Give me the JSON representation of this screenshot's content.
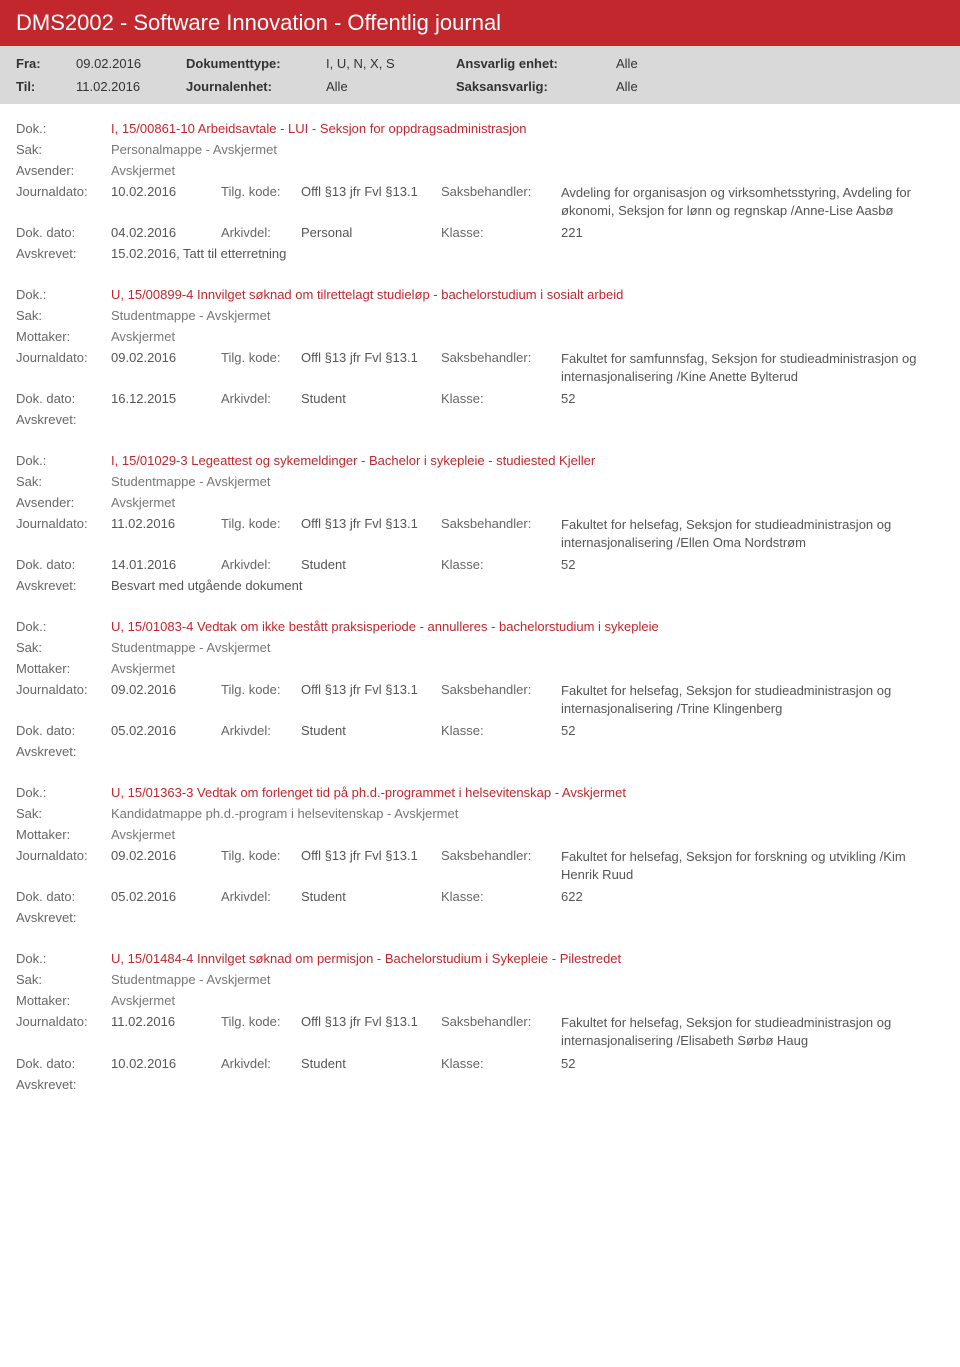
{
  "header": {
    "title": "DMS2002 - Software Innovation - Offentlig journal",
    "fra_label": "Fra:",
    "fra_value": "09.02.2016",
    "til_label": "Til:",
    "til_value": "11.02.2016",
    "doktype_label": "Dokumenttype:",
    "doktype_value": "I, U, N, X, S",
    "journalenhet_label": "Journalenhet:",
    "journalenhet_value": "Alle",
    "ansvarlig_label": "Ansvarlig enhet:",
    "ansvarlig_value": "Alle",
    "saksansvarlig_label": "Saksansvarlig:",
    "saksansvarlig_value": "Alle"
  },
  "labels": {
    "dok": "Dok.:",
    "sak": "Sak:",
    "avsender": "Avsender:",
    "mottaker": "Mottaker:",
    "journaldato": "Journaldato:",
    "tilgkode": "Tilg. kode:",
    "saksbehandler": "Saksbehandler:",
    "dokdato": "Dok. dato:",
    "arkivdel": "Arkivdel:",
    "klasse": "Klasse:",
    "avskrevet": "Avskrevet:"
  },
  "entries": [
    {
      "dok": "I, 15/00861-10 Arbeidsavtale - LUI - Seksjon for oppdragsadministrasjon",
      "sak": "Personalmappe - Avskjermet",
      "party_label": "Avsender:",
      "party": "Avskjermet",
      "journaldato": "10.02.2016",
      "offl": "Offl §13 jfr Fvl §13.1",
      "saksbehandler": "Avdeling for organisasjon og virksomhetsstyring, Avdeling for økonomi, Seksjon for lønn og regnskap /Anne-Lise Aasbø",
      "dokdato": "04.02.2016",
      "arkivdel": "Personal",
      "klasse": "221",
      "avskrevet": "15.02.2016, Tatt til etterretning"
    },
    {
      "dok": "U, 15/00899-4 Innvilget søknad om tilrettelagt studieløp - bachelorstudium i sosialt arbeid",
      "sak": "Studentmappe - Avskjermet",
      "party_label": "Mottaker:",
      "party": "Avskjermet",
      "journaldato": "09.02.2016",
      "offl": "Offl §13 jfr Fvl §13.1",
      "saksbehandler": "Fakultet for samfunnsfag, Seksjon for studieadministrasjon og internasjonalisering /Kine Anette Bylterud",
      "dokdato": "16.12.2015",
      "arkivdel": "Student",
      "klasse": "52",
      "avskrevet": ""
    },
    {
      "dok": "I, 15/01029-3 Legeattest og sykemeldinger - Bachelor i sykepleie - studiested Kjeller",
      "sak": "Studentmappe - Avskjermet",
      "party_label": "Avsender:",
      "party": "Avskjermet",
      "journaldato": "11.02.2016",
      "offl": "Offl §13 jfr Fvl §13.1",
      "saksbehandler": "Fakultet for helsefag, Seksjon for studieadministrasjon og internasjonalisering /Ellen Oma Nordstrøm",
      "dokdato": "14.01.2016",
      "arkivdel": "Student",
      "klasse": "52",
      "avskrevet": "Besvart med utgående dokument"
    },
    {
      "dok": "U, 15/01083-4 Vedtak om ikke bestått praksisperiode - annulleres - bachelorstudium i sykepleie",
      "sak": "Studentmappe - Avskjermet",
      "party_label": "Mottaker:",
      "party": "Avskjermet",
      "journaldato": "09.02.2016",
      "offl": "Offl §13 jfr Fvl §13.1",
      "saksbehandler": "Fakultet for helsefag, Seksjon for studieadministrasjon og internasjonalisering /Trine Klingenberg",
      "dokdato": "05.02.2016",
      "arkivdel": "Student",
      "klasse": "52",
      "avskrevet": ""
    },
    {
      "dok": "U, 15/01363-3 Vedtak om forlenget tid på ph.d.-programmet i helsevitenskap - Avskjermet",
      "sak": "Kandidatmappe ph.d.-program i helsevitenskap - Avskjermet",
      "party_label": "Mottaker:",
      "party": "Avskjermet",
      "journaldato": "09.02.2016",
      "offl": "Offl §13 jfr Fvl §13.1",
      "saksbehandler": "Fakultet for helsefag, Seksjon for forskning og utvikling /Kim Henrik Ruud",
      "dokdato": "05.02.2016",
      "arkivdel": "Student",
      "klasse": "622",
      "avskrevet": ""
    },
    {
      "dok": "U, 15/01484-4 Innvilget søknad om permisjon - Bachelorstudium i Sykepleie - Pilestredet",
      "sak": "Studentmappe - Avskjermet",
      "party_label": "Mottaker:",
      "party": "Avskjermet",
      "journaldato": "11.02.2016",
      "offl": "Offl §13 jfr Fvl §13.1",
      "saksbehandler": "Fakultet for helsefag, Seksjon for studieadministrasjon og internasjonalisering /Elisabeth Sørbø Haug",
      "dokdato": "10.02.2016",
      "arkivdel": "Student",
      "klasse": "52",
      "avskrevet": ""
    }
  ]
}
